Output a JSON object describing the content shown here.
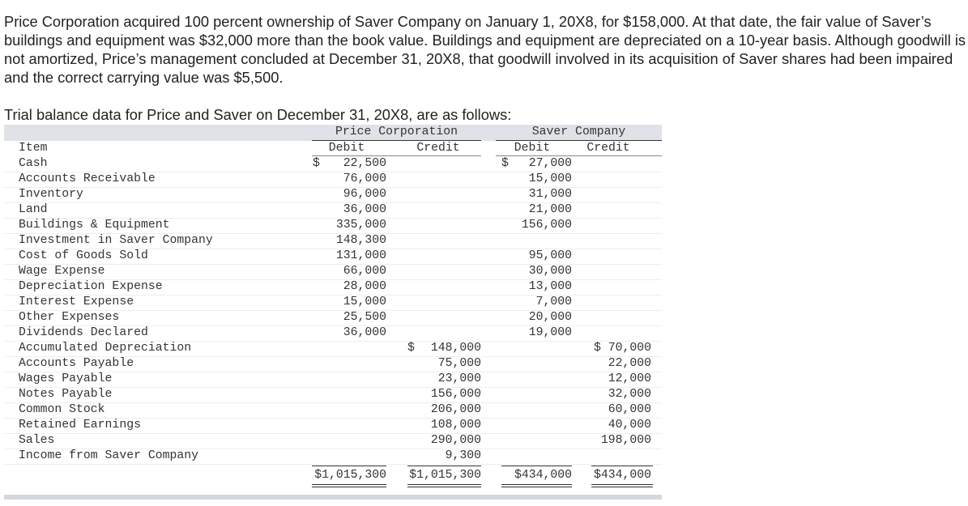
{
  "paragraphs": [
    "Price Corporation acquired 100 percent ownership of Saver Company on January 1, 20X8, for $158,000. At that date, the fair value of Saver’s buildings and equipment was $32,000 more than the book value. Buildings and equipment are depreciated on a 10-year basis. Although goodwill is not amortized, Price’s management concluded at December 31, 20X8, that goodwill involved in its acquisition of Saver shares had been impaired and the correct carrying value was $5,500.",
    "Trial balance data for Price and Saver on December 31, 20X8, are as follows:"
  ],
  "table": {
    "groups": [
      "Price Corporation",
      "Saver Company"
    ],
    "columns": [
      "Item",
      "Debit",
      "Credit",
      "Debit",
      "Credit"
    ],
    "rows": [
      [
        "Cash",
        {
          "currency": "$",
          "amount": "22,500"
        },
        null,
        {
          "currency": "$",
          "amount": "27,000"
        },
        null
      ],
      [
        "Accounts Receivable",
        "76,000",
        null,
        "15,000",
        null
      ],
      [
        "Inventory",
        "96,000",
        null,
        "31,000",
        null
      ],
      [
        "Land",
        "36,000",
        null,
        "21,000",
        null
      ],
      [
        "Buildings & Equipment",
        "335,000",
        null,
        "156,000",
        null
      ],
      [
        "Investment in Saver Company",
        "148,300",
        null,
        null,
        null
      ],
      [
        "Cost of Goods Sold",
        "131,000",
        null,
        "95,000",
        null
      ],
      [
        "Wage Expense",
        "66,000",
        null,
        "30,000",
        null
      ],
      [
        "Depreciation Expense",
        "28,000",
        null,
        "13,000",
        null
      ],
      [
        "Interest Expense",
        "15,000",
        null,
        "7,000",
        null
      ],
      [
        "Other Expenses",
        "25,500",
        null,
        "20,000",
        null
      ],
      [
        "Dividends Declared",
        "36,000",
        null,
        "19,000",
        null
      ],
      [
        "Accumulated Depreciation",
        null,
        {
          "currency": "$",
          "amount": "148,000"
        },
        null,
        "$ 70,000"
      ],
      [
        "Accounts Payable",
        null,
        "75,000",
        null,
        "22,000"
      ],
      [
        "Wages Payable",
        null,
        "23,000",
        null,
        "12,000"
      ],
      [
        "Notes Payable",
        null,
        "156,000",
        null,
        "32,000"
      ],
      [
        "Common Stock",
        null,
        "206,000",
        null,
        "60,000"
      ],
      [
        "Retained Earnings",
        null,
        "108,000",
        null,
        "40,000"
      ],
      [
        "Sales",
        null,
        "290,000",
        null,
        "198,000"
      ],
      [
        "Income from Saver Company",
        null,
        "9,300",
        null,
        null
      ],
      [
        null,
        "$1,015,300",
        "$1,015,300",
        "$434,000",
        "$434,000"
      ]
    ]
  }
}
